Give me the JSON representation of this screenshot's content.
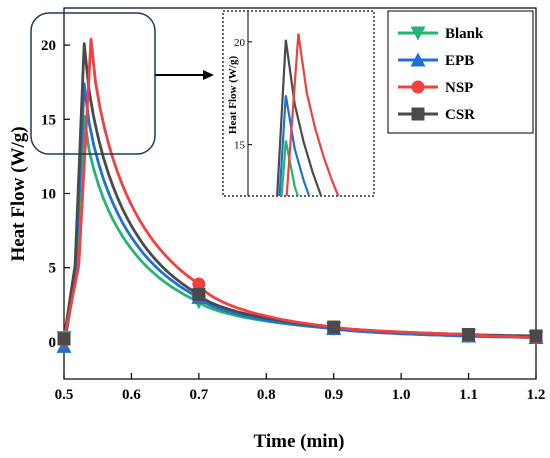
{
  "chart_data": {
    "type": "line",
    "xlabel": "Time (min)",
    "ylabel": "Heat Flow (W/g)",
    "xlim": [
      0.5,
      1.2
    ],
    "ylim": [
      -2.5,
      22.5
    ],
    "xticks": [
      "0.5",
      "0.6",
      "0.7",
      "0.8",
      "0.9",
      "1.0",
      "1.1",
      "1.2"
    ],
    "yticks": [
      "0",
      "5",
      "10",
      "15",
      "20"
    ],
    "legend_position": "top-right",
    "series": [
      {
        "name": "Blank",
        "color": "#22b573",
        "marker": "triangle-down",
        "x": [
          0.5,
          0.53,
          0.7,
          0.9,
          1.1,
          1.2
        ],
        "y": [
          0.3,
          15.2,
          2.7,
          0.9,
          0.4,
          0.3
        ]
      },
      {
        "name": "EPB",
        "color": "#1f6fd6",
        "marker": "triangle-up",
        "x": [
          0.5,
          0.53,
          0.7,
          0.9,
          1.1,
          1.2
        ],
        "y": [
          -0.3,
          17.4,
          3.0,
          0.9,
          0.4,
          0.3
        ]
      },
      {
        "name": "NSP",
        "color": "#f0403f",
        "marker": "circle",
        "x": [
          0.5,
          0.54,
          0.7,
          0.9,
          1.1,
          1.2
        ],
        "y": [
          0.1,
          20.4,
          3.9,
          1.0,
          0.5,
          0.3
        ]
      },
      {
        "name": "CSR",
        "color": "#4a4a4a",
        "marker": "square",
        "x": [
          0.5,
          0.53,
          0.7,
          0.9,
          1.1,
          1.2
        ],
        "y": [
          0.2,
          20.1,
          3.2,
          1.0,
          0.5,
          0.4
        ]
      }
    ],
    "inset": {
      "ylabel": "Heat Flow (W/g)",
      "yticks": [
        "15",
        "20"
      ],
      "ylim": [
        12.5,
        21.5
      ],
      "description_of_region": "zoom of peak region"
    }
  }
}
